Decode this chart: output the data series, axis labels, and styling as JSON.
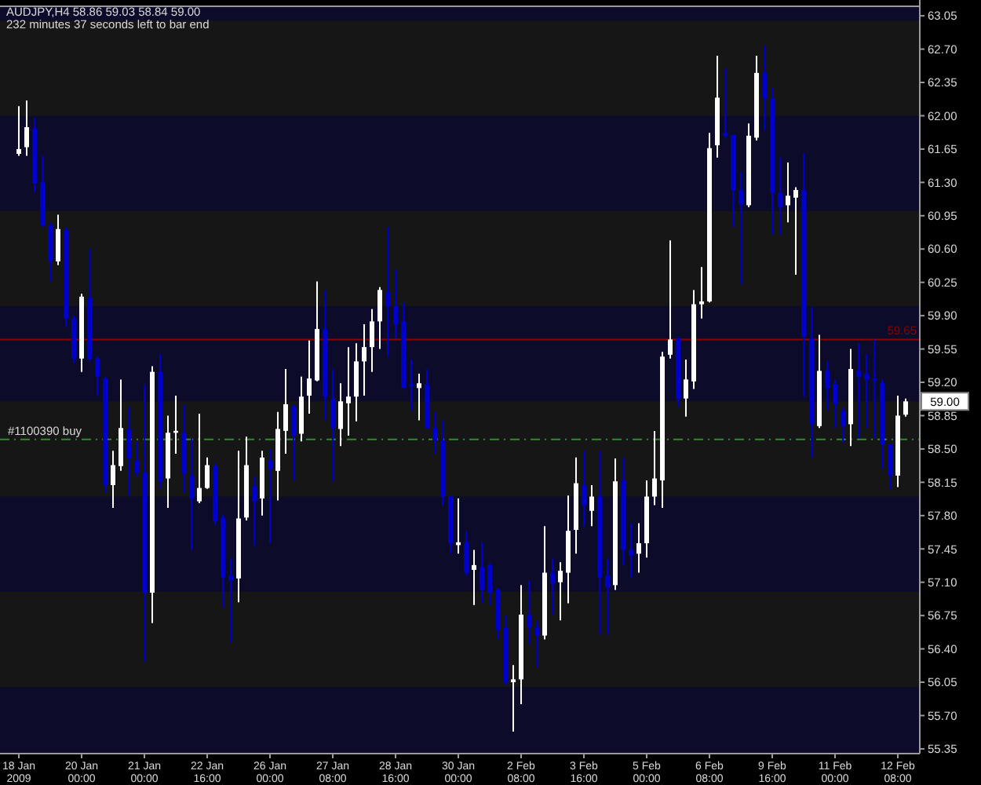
{
  "chart_data": {
    "type": "candlestick",
    "title": "AUDJPY,H4  58.86 59.03 58.84 59.00",
    "annotations": [
      "232 minutes 37 seconds left to bar end",
      "59.00"
    ],
    "categories": [
      "18 Jan 2009",
      null,
      null,
      null,
      null,
      null,
      null,
      null,
      "20 Jan 00:00",
      null,
      null,
      null,
      null,
      null,
      null,
      null,
      "21 Jan 00:00",
      null,
      null,
      null,
      null,
      null,
      null,
      null,
      "22 Jan 16:00",
      null,
      null,
      null,
      null,
      null,
      null,
      null,
      "26 Jan 00:00",
      null,
      null,
      null,
      null,
      null,
      null,
      null,
      "27 Jan 08:00",
      null,
      null,
      null,
      null,
      null,
      null,
      null,
      "28 Jan 16:00",
      null,
      null,
      null,
      null,
      null,
      null,
      null,
      "30 Jan 00:00",
      null,
      null,
      null,
      null,
      null,
      null,
      null,
      "2 Feb 08:00",
      null,
      null,
      null,
      null,
      null,
      null,
      null,
      "3 Feb 16:00",
      null,
      null,
      null,
      null,
      null,
      null,
      null,
      "5 Feb 00:00",
      null,
      null,
      null,
      null,
      null,
      null,
      null,
      "6 Feb 08:00",
      null,
      null,
      null,
      null,
      null,
      null,
      null,
      "9 Feb 16:00",
      null,
      null,
      null,
      null,
      null,
      null,
      null,
      "11 Feb 00:00",
      null,
      null,
      null,
      null,
      null,
      null,
      null,
      "12 Feb 08:00",
      null
    ],
    "ohlc": [
      [
        61.6,
        62.1,
        61.58,
        61.65
      ],
      [
        61.67,
        62.16,
        61.58,
        61.88
      ],
      [
        61.87,
        61.98,
        61.2,
        61.29
      ],
      [
        61.3,
        61.58,
        60.83,
        60.85
      ],
      [
        60.85,
        60.88,
        60.26,
        60.47
      ],
      [
        60.47,
        60.96,
        60.43,
        60.81
      ],
      [
        60.8,
        60.83,
        59.78,
        59.87
      ],
      [
        59.87,
        59.9,
        59.4,
        59.45
      ],
      [
        59.45,
        60.13,
        59.31,
        60.1
      ],
      [
        60.09,
        60.6,
        59.42,
        59.45
      ],
      [
        59.45,
        59.47,
        59.06,
        59.26
      ],
      [
        59.24,
        59.26,
        58.04,
        58.12
      ],
      [
        58.12,
        58.48,
        57.88,
        58.33
      ],
      [
        58.32,
        59.23,
        58.27,
        58.72
      ],
      [
        58.71,
        58.94,
        58.01,
        58.4
      ],
      [
        58.38,
        58.58,
        58.21,
        58.25
      ],
      [
        58.25,
        59.18,
        56.26,
        56.99
      ],
      [
        56.99,
        59.37,
        56.67,
        59.31
      ],
      [
        59.31,
        59.5,
        58.08,
        58.16
      ],
      [
        58.19,
        58.85,
        57.88,
        58.67
      ],
      [
        58.67,
        59.06,
        58.45,
        58.69
      ],
      [
        58.67,
        58.97,
        58.04,
        58.24
      ],
      [
        58.22,
        58.61,
        57.44,
        57.98
      ],
      [
        57.95,
        58.87,
        57.93,
        58.09
      ],
      [
        58.09,
        58.41,
        58.08,
        58.33
      ],
      [
        58.32,
        58.35,
        57.7,
        57.74
      ],
      [
        57.78,
        57.81,
        56.83,
        57.15
      ],
      [
        57.17,
        57.35,
        56.47,
        57.12
      ],
      [
        57.14,
        58.48,
        56.89,
        57.77
      ],
      [
        57.78,
        58.63,
        57.75,
        58.33
      ],
      [
        58.11,
        58.21,
        57.48,
        57.95
      ],
      [
        57.98,
        58.48,
        57.8,
        58.41
      ],
      [
        58.38,
        58.5,
        57.51,
        58.29
      ],
      [
        58.27,
        58.89,
        57.96,
        58.71
      ],
      [
        58.69,
        59.34,
        58.45,
        58.97
      ],
      [
        58.95,
        58.97,
        58.17,
        58.64
      ],
      [
        58.66,
        59.26,
        58.58,
        59.05
      ],
      [
        59.06,
        59.64,
        58.87,
        59.24
      ],
      [
        59.22,
        60.26,
        59.21,
        59.76
      ],
      [
        59.76,
        60.17,
        58.8,
        59.05
      ],
      [
        59.02,
        59.34,
        58.16,
        58.72
      ],
      [
        58.71,
        59.19,
        58.53,
        59.0
      ],
      [
        58.98,
        59.57,
        58.64,
        59.05
      ],
      [
        59.05,
        59.61,
        58.79,
        59.42
      ],
      [
        59.42,
        59.81,
        59.06,
        59.57
      ],
      [
        59.57,
        59.97,
        59.31,
        59.84
      ],
      [
        59.84,
        60.2,
        59.55,
        60.17
      ],
      [
        60.15,
        60.83,
        59.47,
        60.0
      ],
      [
        60.0,
        60.39,
        59.66,
        59.81
      ],
      [
        59.84,
        60.04,
        59.14,
        59.14
      ],
      [
        59.18,
        59.44,
        58.9,
        59.16
      ],
      [
        59.14,
        59.29,
        58.8,
        59.19
      ],
      [
        59.18,
        59.34,
        58.71,
        58.72
      ],
      [
        58.72,
        58.89,
        58.45,
        58.59
      ],
      [
        58.59,
        58.8,
        57.91,
        58.0
      ],
      [
        58.0,
        58.0,
        57.4,
        57.51
      ],
      [
        57.49,
        57.98,
        57.4,
        57.52
      ],
      [
        57.52,
        57.64,
        57.17,
        57.2
      ],
      [
        57.23,
        57.44,
        56.86,
        57.28
      ],
      [
        57.26,
        57.52,
        56.88,
        57.02
      ],
      [
        57.28,
        57.3,
        56.86,
        56.99
      ],
      [
        57.02,
        57.04,
        56.5,
        56.6
      ],
      [
        56.62,
        56.75,
        56.02,
        56.05
      ],
      [
        56.05,
        56.23,
        55.53,
        56.08
      ],
      [
        56.08,
        57.07,
        55.82,
        56.76
      ],
      [
        56.76,
        57.12,
        56.45,
        56.63
      ],
      [
        56.63,
        56.7,
        56.21,
        56.54
      ],
      [
        56.54,
        57.69,
        56.5,
        57.2
      ],
      [
        57.2,
        57.35,
        56.76,
        57.09
      ],
      [
        57.1,
        57.31,
        56.7,
        57.22
      ],
      [
        57.2,
        58.01,
        56.88,
        57.64
      ],
      [
        57.65,
        58.41,
        57.4,
        58.14
      ],
      [
        58.12,
        58.48,
        57.69,
        57.91
      ],
      [
        57.85,
        58.12,
        57.69,
        58.0
      ],
      [
        58.0,
        58.48,
        56.55,
        57.15
      ],
      [
        57.17,
        57.35,
        56.55,
        57.05
      ],
      [
        57.07,
        58.4,
        57.02,
        58.16
      ],
      [
        58.17,
        58.41,
        57.28,
        57.44
      ],
      [
        57.44,
        57.72,
        57.15,
        57.38
      ],
      [
        57.4,
        57.72,
        57.2,
        57.51
      ],
      [
        57.51,
        58.17,
        57.36,
        58.0
      ],
      [
        58.0,
        58.69,
        57.91,
        58.19
      ],
      [
        58.17,
        59.52,
        57.88,
        59.47
      ],
      [
        59.49,
        60.69,
        59.45,
        59.65
      ],
      [
        59.66,
        59.68,
        58.94,
        59.03
      ],
      [
        59.03,
        59.44,
        58.84,
        59.23
      ],
      [
        59.21,
        60.17,
        59.13,
        60.02
      ],
      [
        60.02,
        60.41,
        59.87,
        60.05
      ],
      [
        60.05,
        61.82,
        60.04,
        61.66
      ],
      [
        61.69,
        62.63,
        61.56,
        62.19
      ],
      [
        61.82,
        62.5,
        61.77,
        61.79
      ],
      [
        61.8,
        61.8,
        60.83,
        61.22
      ],
      [
        61.22,
        61.41,
        60.23,
        61.07
      ],
      [
        61.06,
        61.92,
        61.04,
        61.79
      ],
      [
        61.77,
        62.63,
        61.74,
        62.45
      ],
      [
        62.45,
        62.74,
        61.85,
        62.18
      ],
      [
        62.18,
        62.29,
        60.75,
        61.19
      ],
      [
        61.19,
        61.56,
        60.75,
        61.04
      ],
      [
        61.06,
        61.51,
        60.88,
        61.16
      ],
      [
        61.14,
        61.25,
        60.33,
        61.22
      ],
      [
        61.22,
        61.61,
        59.05,
        59.68
      ],
      [
        59.66,
        59.99,
        58.41,
        58.76
      ],
      [
        58.74,
        59.7,
        58.72,
        59.32
      ],
      [
        59.32,
        59.42,
        58.9,
        59.14
      ],
      [
        59.18,
        59.23,
        58.72,
        58.97
      ],
      [
        58.9,
        58.94,
        58.56,
        58.74
      ],
      [
        58.76,
        59.55,
        58.53,
        59.34
      ],
      [
        59.32,
        59.61,
        58.61,
        59.26
      ],
      [
        59.29,
        59.5,
        58.72,
        59.23
      ],
      [
        59.24,
        59.65,
        58.61,
        59.22
      ],
      [
        59.19,
        59.23,
        58.29,
        58.55
      ],
      [
        58.55,
        58.55,
        58.08,
        58.22
      ],
      [
        58.22,
        59.06,
        58.1,
        58.85
      ],
      [
        58.86,
        59.03,
        58.84,
        59.0
      ]
    ],
    "colors": [
      "#ffffff",
      "#ffffff",
      "#0000cc",
      "#0000cc",
      "#0000cc",
      "#ffffff",
      "#0000cc",
      "#0000cc",
      "#ffffff",
      "#0000cc",
      "#0000cc",
      "#0000cc",
      "#ffffff",
      "#ffffff",
      "#0000cc",
      "#0000cc",
      "#0000cc",
      "#ffffff",
      "#0000cc",
      "#ffffff",
      "#ffffff",
      "#0000cc",
      "#0000cc",
      "#ffffff",
      "#ffffff",
      "#0000cc",
      "#0000cc",
      "#0000cc",
      "#ffffff",
      "#ffffff",
      "#0000cc",
      "#ffffff",
      "#0000cc",
      "#ffffff",
      "#ffffff",
      "#0000cc",
      "#ffffff",
      "#ffffff",
      "#ffffff",
      "#0000cc",
      "#0000cc",
      "#ffffff",
      "#ffffff",
      "#ffffff",
      "#ffffff",
      "#ffffff",
      "#ffffff",
      "#0000cc",
      "#0000cc",
      "#0000cc",
      "#0000cc",
      "#ffffff",
      "#0000cc",
      "#0000cc",
      "#0000cc",
      "#0000cc",
      "#ffffff",
      "#0000cc",
      "#ffffff",
      "#0000cc",
      "#0000cc",
      "#0000cc",
      "#0000cc",
      "#ffffff",
      "#ffffff",
      "#0000cc",
      "#0000cc",
      "#ffffff",
      "#0000cc",
      "#ffffff",
      "#ffffff",
      "#ffffff",
      "#0000cc",
      "#ffffff",
      "#0000cc",
      "#0000cc",
      "#ffffff",
      "#0000cc",
      "#0000cc",
      "#ffffff",
      "#ffffff",
      "#ffffff",
      "#ffffff",
      "#ffffff",
      "#0000cc",
      "#ffffff",
      "#ffffff",
      "#ffffff",
      "#ffffff",
      "#ffffff",
      "#0000cc",
      "#0000cc",
      "#0000cc",
      "#ffffff",
      "#ffffff",
      "#0000cc",
      "#0000cc",
      "#0000cc",
      "#ffffff",
      "#ffffff",
      "#0000cc",
      "#0000cc",
      "#ffffff",
      "#0000cc",
      "#0000cc",
      "#0000cc",
      "#ffffff",
      "#0000cc",
      "#0000cc",
      "#0000cc",
      "#0000cc",
      "#0000cc",
      "#ffffff",
      "#ffffff"
    ],
    "ylim": [
      55.3,
      63.15
    ],
    "yticks": [
      63.05,
      {
        "value": 62.7,
        "label": "62.70"
      },
      62.35,
      {
        "value": 62.0,
        "label": "62.00"
      },
      61.65,
      {
        "value": 61.3,
        "label": "61.30"
      },
      60.95,
      {
        "value": 60.6,
        "label": "60.60"
      },
      60.25,
      {
        "value": 59.9,
        "label": "59.90"
      },
      59.55,
      {
        "value": 59.2,
        "label": "59.20"
      },
      58.85,
      {
        "value": 58.5,
        "label": "58.50"
      },
      58.15,
      {
        "value": 57.8,
        "label": "57.80"
      },
      57.45,
      {
        "value": 57.1,
        "label": "57.10"
      },
      56.75,
      {
        "value": 56.4,
        "label": "56.40"
      },
      56.05,
      {
        "value": 55.7,
        "label": "55.70"
      },
      55.35
    ],
    "bands": [
      {
        "axis": "y",
        "from": 62,
        "to": 63,
        "color": "#161616"
      },
      {
        "axis": "y",
        "from": 60,
        "to": 61,
        "color": "#161616"
      },
      {
        "axis": "y",
        "from": 58,
        "to": 59,
        "color": "#161616"
      },
      {
        "axis": "y",
        "from": 56,
        "to": 57,
        "color": "#161616"
      }
    ],
    "ref_lines": [
      {
        "axis": "y",
        "value": 58.6,
        "label": "#1100390 buy",
        "color": "#2e8b2e",
        "line_style": "dashed"
      },
      {
        "axis": "y",
        "value": 59.65,
        "label": "59.65",
        "color": "#8b0000",
        "line_style": "solid"
      }
    ]
  }
}
